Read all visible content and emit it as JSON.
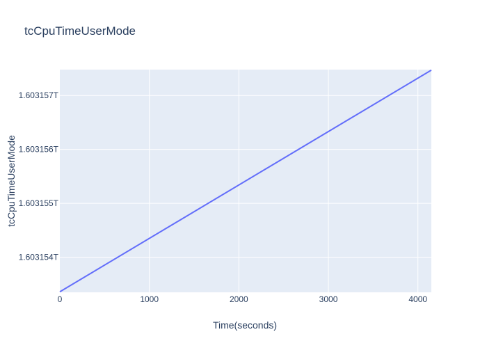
{
  "chart_data": {
    "type": "line",
    "title": "tcCpuTimeUserMode",
    "xlabel": "Time(seconds)",
    "ylabel": "tcCpuTimeUserMode",
    "xlim": [
      0,
      4150
    ],
    "ylim": [
      1603153.35,
      1603157.48
    ],
    "xticks": [
      0,
      1000,
      2000,
      3000,
      4000
    ],
    "xtick_labels": [
      "0",
      "1000",
      "2000",
      "3000",
      "4000"
    ],
    "yticks": [
      1603154,
      1603155,
      1603156,
      1603157
    ],
    "ytick_labels": [
      "1.603154T",
      "1.603155T",
      "1.603156T",
      "1.603157T"
    ],
    "y_unit_note": "values in millions shown as T suffix on ticks",
    "grid": true,
    "legend": false,
    "series": [
      {
        "color": "#636efa",
        "x": [
          0,
          4150
        ],
        "y": [
          1603153.36,
          1603157.47
        ]
      }
    ],
    "colors": {
      "plot_background": "#e5ecf6",
      "grid": "#ffffff",
      "text": "#2a3f5f"
    }
  }
}
